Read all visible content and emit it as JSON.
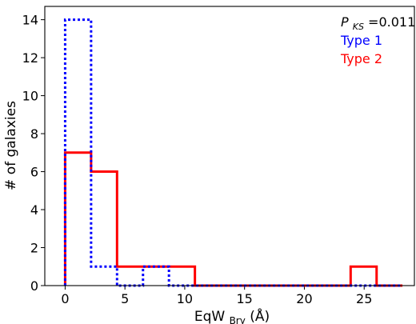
{
  "chart_data": {
    "type": "histogram",
    "xlabel": {
      "main": "EqW",
      "sub": "Brγ",
      "unit": " (Å)"
    },
    "ylabel": "# of galaxies",
    "xlim": [
      -1.7,
      29.2
    ],
    "ylim": [
      0,
      14.7
    ],
    "xticks": [
      "0",
      "5",
      "10",
      "15",
      "20",
      "25"
    ],
    "yticks": [
      "0",
      "2",
      "4",
      "6",
      "8",
      "10",
      "12",
      "14"
    ],
    "grid": false,
    "legend_placement": "top-right",
    "annotation": {
      "symbol": "P",
      "sub": "KS",
      "value": "=0.011"
    },
    "bin_edges": [
      0,
      2.17,
      4.34,
      6.51,
      8.68,
      10.85,
      13.02,
      15.19,
      17.36,
      19.53,
      21.7,
      23.87,
      26.04,
      28.2
    ],
    "series": [
      {
        "name": "Type 1",
        "color": "#0000ff",
        "style": "dotted",
        "counts": [
          14,
          1,
          0,
          1,
          0,
          0,
          0,
          0,
          0,
          0,
          0,
          0,
          0
        ]
      },
      {
        "name": "Type 2",
        "color": "#ff0000",
        "style": "solid",
        "counts": [
          7,
          6,
          1,
          1,
          1,
          0,
          0,
          0,
          0,
          0,
          0,
          1,
          0
        ]
      }
    ]
  }
}
